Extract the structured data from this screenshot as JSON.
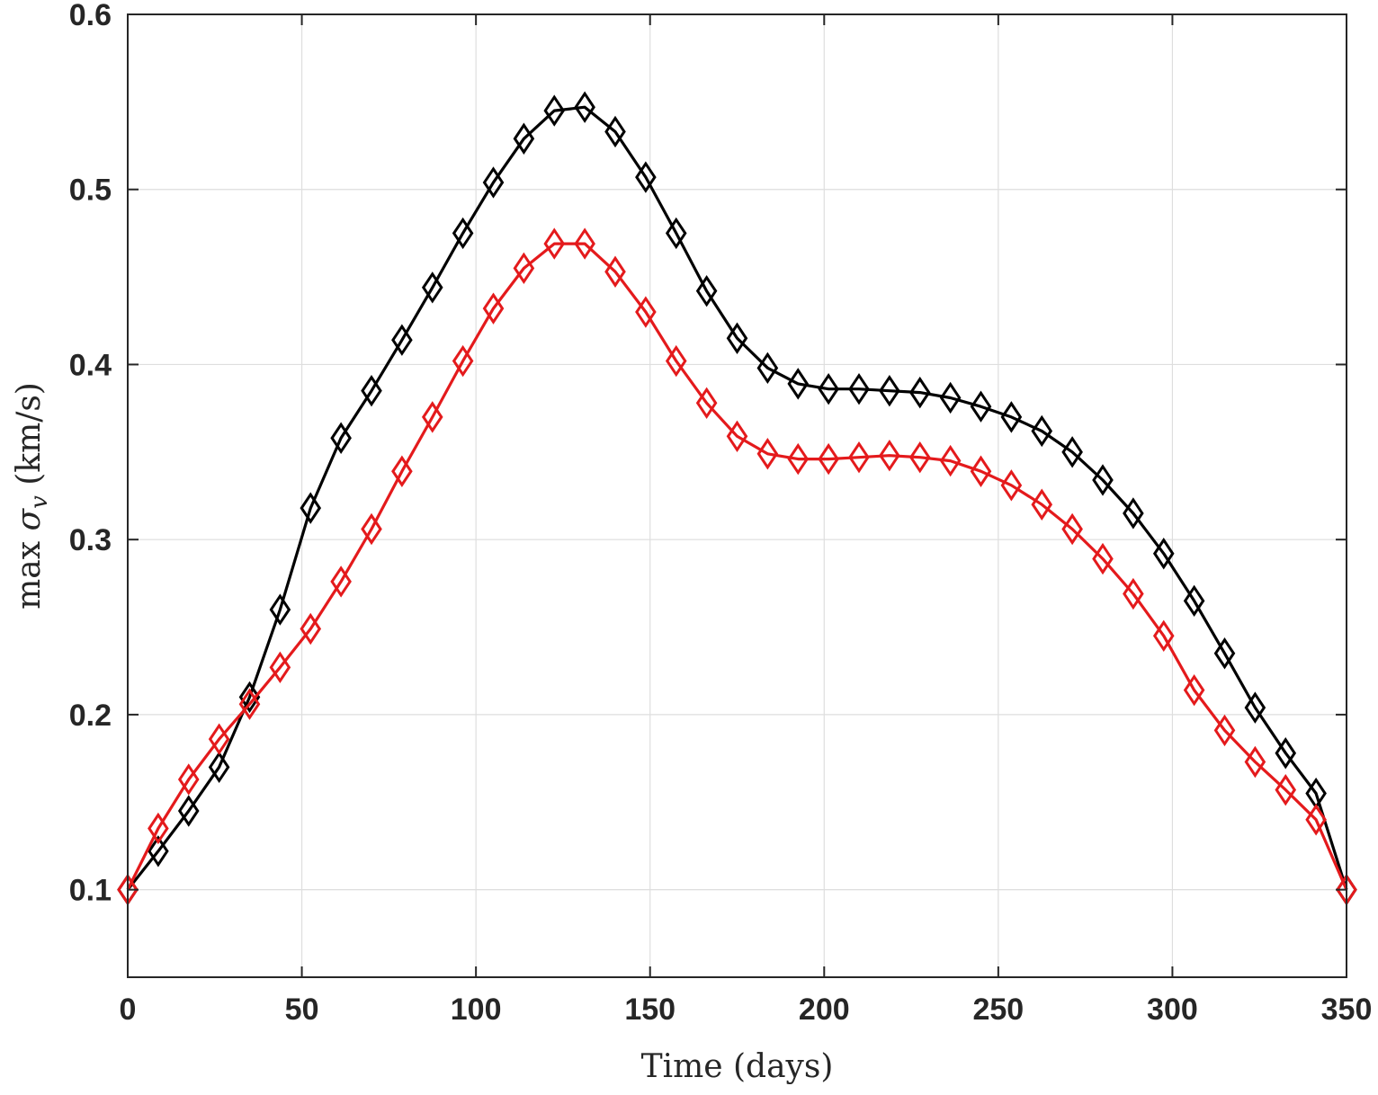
{
  "chart_data": {
    "type": "line",
    "xlabel": "Time (days)",
    "ylabel_text": "max ",
    "ylabel_symbol": "σ",
    "ylabel_subscript": "v",
    "ylabel_units": " (km/s)",
    "xlim": [
      0,
      350
    ],
    "ylim": [
      0.05,
      0.6
    ],
    "x_ticks": [
      0,
      50,
      100,
      150,
      200,
      250,
      300,
      350
    ],
    "x_tick_labels": [
      "0",
      "50",
      "100",
      "150",
      "200",
      "250",
      "300",
      "350"
    ],
    "y_ticks": [
      0.1,
      0.2,
      0.3,
      0.4,
      0.5,
      0.6
    ],
    "y_tick_labels": [
      "0.1",
      "0.2",
      "0.3",
      "0.4",
      "0.5",
      "0.6"
    ],
    "grid": true,
    "marker": "diamond",
    "x": [
      0,
      8.75,
      17.5,
      26.25,
      35,
      43.75,
      52.5,
      61.25,
      70,
      78.75,
      87.5,
      96.25,
      105,
      113.75,
      122.5,
      131.25,
      140,
      148.75,
      157.5,
      166.25,
      175,
      183.75,
      192.5,
      201.25,
      210,
      218.75,
      227.5,
      236.25,
      245,
      253.75,
      262.5,
      271.25,
      280,
      288.75,
      297.5,
      306.25,
      315,
      323.75,
      332.5,
      341.25,
      350
    ],
    "series": [
      {
        "color": "#000000",
        "values": [
          0.1,
          0.122,
          0.145,
          0.17,
          0.21,
          0.26,
          0.318,
          0.358,
          0.385,
          0.414,
          0.444,
          0.475,
          0.504,
          0.529,
          0.545,
          0.547,
          0.533,
          0.507,
          0.475,
          0.442,
          0.415,
          0.398,
          0.389,
          0.386,
          0.386,
          0.385,
          0.384,
          0.381,
          0.376,
          0.37,
          0.362,
          0.35,
          0.334,
          0.315,
          0.292,
          0.265,
          0.235,
          0.204,
          0.178,
          0.155,
          0.1
        ]
      },
      {
        "color": "#e41a1c",
        "values": [
          0.1,
          0.135,
          0.163,
          0.186,
          0.206,
          0.227,
          0.249,
          0.276,
          0.306,
          0.339,
          0.37,
          0.402,
          0.432,
          0.455,
          0.469,
          0.469,
          0.453,
          0.43,
          0.402,
          0.378,
          0.359,
          0.349,
          0.346,
          0.346,
          0.347,
          0.348,
          0.347,
          0.345,
          0.339,
          0.331,
          0.32,
          0.306,
          0.289,
          0.269,
          0.245,
          0.214,
          0.191,
          0.173,
          0.157,
          0.14,
          0.1
        ]
      }
    ]
  }
}
